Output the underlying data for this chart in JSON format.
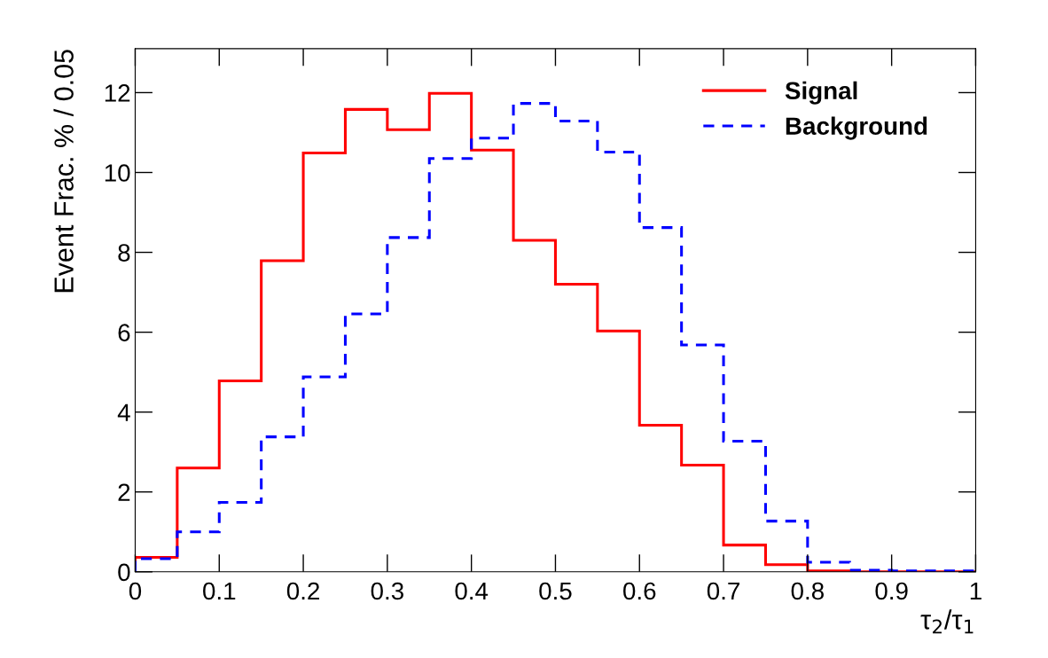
{
  "chart_data": {
    "type": "histogram",
    "xlabel": "τ$_{2}$/τ$_{1}$",
    "ylabel": "Event Frac. % / 0.05",
    "bins": [
      0,
      0.05,
      0.1,
      0.15,
      0.2,
      0.25,
      0.3,
      0.35,
      0.4,
      0.45,
      0.5,
      0.55,
      0.6,
      0.65,
      0.7,
      0.75,
      0.8,
      0.85,
      0.9,
      0.95,
      1.0
    ],
    "series": [
      {
        "name": "Signal",
        "color": "#ff0000",
        "line_style": "solid",
        "values": [
          0.36,
          2.6,
          4.78,
          7.79,
          10.49,
          11.58,
          11.07,
          11.98,
          10.56,
          8.3,
          7.2,
          6.03,
          3.67,
          2.67,
          0.67,
          0.18,
          0.02,
          0,
          0,
          0
        ]
      },
      {
        "name": "Background",
        "color": "#0000ff",
        "line_style": "dashed",
        "values": [
          0.33,
          1.0,
          1.74,
          3.38,
          4.88,
          6.46,
          8.37,
          10.35,
          10.86,
          11.73,
          11.29,
          10.51,
          8.62,
          5.68,
          3.27,
          1.27,
          0.24,
          0.04,
          0.02,
          0.02
        ]
      }
    ],
    "xlim": [
      0,
      1
    ],
    "xticks": [
      0,
      0.1,
      0.2,
      0.3,
      0.4,
      0.5,
      0.6,
      0.7,
      0.8,
      0.9,
      1
    ],
    "ylim": [
      0,
      13.1
    ],
    "yticks": [
      0,
      2,
      4,
      6,
      8,
      10,
      12
    ],
    "grid": false,
    "legend": "top right"
  }
}
